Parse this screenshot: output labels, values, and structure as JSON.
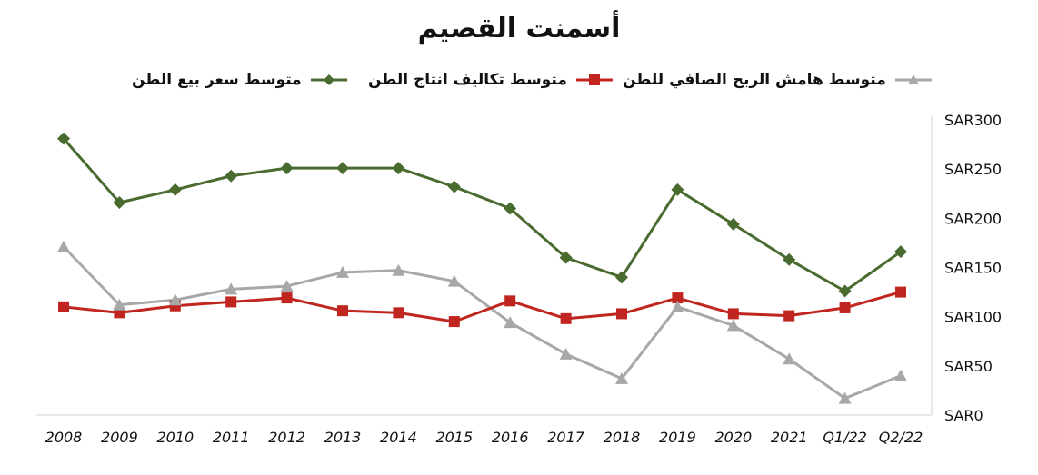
{
  "chart_data": {
    "type": "line",
    "title": "أسمنت القصيم",
    "categories": [
      "2008",
      "2009",
      "2010",
      "2011",
      "2012",
      "2013",
      "2014",
      "2015",
      "2016",
      "2017",
      "2018",
      "2019",
      "2020",
      "2021",
      "Q1/22",
      "Q2/22"
    ],
    "series": [
      {
        "name": "متوسط سعر بيع الطن",
        "color": "#4a6b2f",
        "marker": "diamond",
        "values": [
          281,
          216,
          229,
          243,
          251,
          251,
          251,
          232,
          210,
          160,
          140,
          229,
          194,
          158,
          126,
          166
        ]
      },
      {
        "name": "متوسط تكاليف انتاج الطن",
        "color": "#c0261f",
        "marker": "square",
        "values": [
          110,
          104,
          111,
          115,
          119,
          106,
          104,
          95,
          116,
          98,
          103,
          119,
          103,
          101,
          109,
          125
        ]
      },
      {
        "name": "متوسط هامش الربح الصافي للطن",
        "color": "#a8a8a8",
        "marker": "triangle",
        "values": [
          171,
          112,
          117,
          128,
          131,
          145,
          147,
          136,
          94,
          62,
          37,
          110,
          91,
          57,
          17,
          40
        ]
      }
    ],
    "ylim": [
      0,
      300
    ],
    "y_ticks": [
      "SAR0",
      "SAR50",
      "SAR100",
      "SAR150",
      "SAR200",
      "SAR250",
      "SAR300"
    ],
    "y_axis_position": "right",
    "legend_position": "top",
    "grid": false
  }
}
